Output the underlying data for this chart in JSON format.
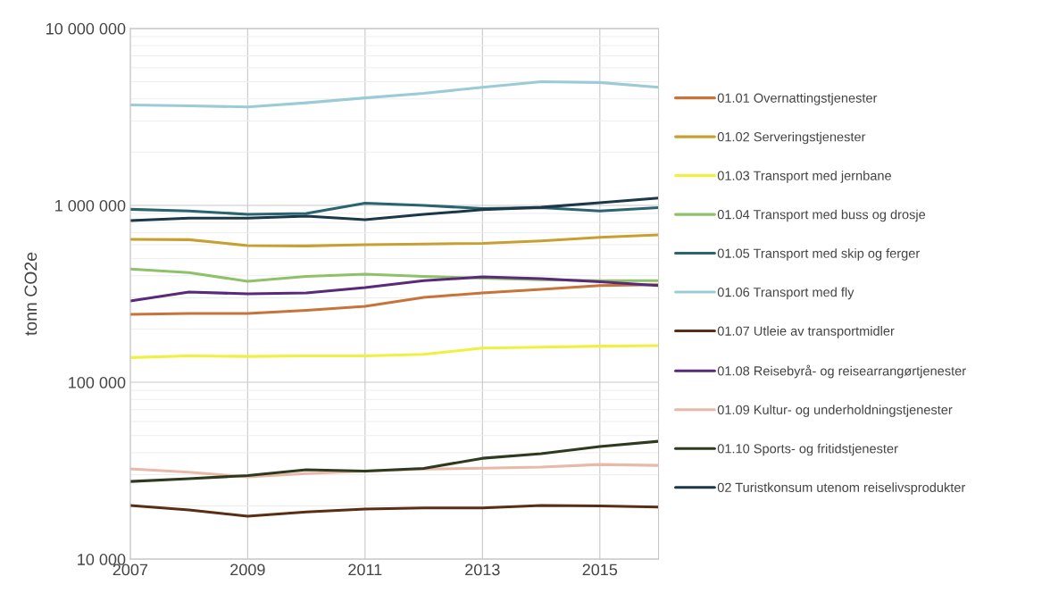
{
  "chart_data": {
    "type": "line",
    "ylabel": "tonn CO2e",
    "log": "y",
    "grid": true,
    "legend": "right",
    "line_style": "solid",
    "marker": "none",
    "x": [
      2007,
      2008,
      2009,
      2010,
      2011,
      2012,
      2013,
      2014,
      2015,
      2016
    ],
    "xlim": [
      2007,
      2016
    ],
    "xticks": [
      2007,
      2009,
      2011,
      2013,
      2015
    ],
    "ylim": [
      10000,
      10000000
    ],
    "yticks": [
      {
        "value": 10000,
        "label": "10 000"
      },
      {
        "value": 100000,
        "label": "100 000"
      },
      {
        "value": 1000000,
        "label": "1 000 000"
      },
      {
        "value": 10000000,
        "label": "10 000 000"
      }
    ],
    "series": [
      {
        "name": "01.01 Overnattingstjenester",
        "color": "#c8733a",
        "values": [
          242000,
          245000,
          245000,
          255000,
          269000,
          302000,
          320000,
          335000,
          352000,
          356000
        ]
      },
      {
        "name": "01.02 Serveringstjenester",
        "color": "#c8a032",
        "values": [
          643000,
          640000,
          593000,
          590000,
          600000,
          605000,
          610000,
          630000,
          660000,
          681000
        ]
      },
      {
        "name": "01.03 Transport med jernbane",
        "color": "#f0f040",
        "values": [
          138000,
          141000,
          140000,
          141000,
          141000,
          144000,
          156000,
          158000,
          160000,
          161000
        ]
      },
      {
        "name": "01.04 Transport med buss og drosje",
        "color": "#8fc06a",
        "values": [
          437000,
          417000,
          372000,
          397000,
          408000,
          397000,
          388000,
          380000,
          375000,
          375000
        ]
      },
      {
        "name": "01.05 Transport med skip og ferger",
        "color": "#2a6470",
        "values": [
          950000,
          930000,
          890000,
          900000,
          1030000,
          1000000,
          960000,
          970000,
          930000,
          970000
        ]
      },
      {
        "name": "01.06 Transport med fly",
        "color": "#9ccbd8",
        "values": [
          3700000,
          3650000,
          3600000,
          3800000,
          4050000,
          4300000,
          4650000,
          5000000,
          4950000,
          4650000
        ]
      },
      {
        "name": "01.07 Utleie av transportmidler",
        "color": "#5a2e14",
        "values": [
          20100,
          19000,
          17500,
          18500,
          19200,
          19500,
          19500,
          20100,
          20000,
          19700
        ]
      },
      {
        "name": "01.08 Reisebyrå- og reisearrangørtjenester",
        "color": "#5a2a7a",
        "values": [
          288000,
          324000,
          316000,
          320000,
          343000,
          375000,
          394000,
          385000,
          370000,
          352000
        ]
      },
      {
        "name": "01.09 Kultur- og underholdningstjenester",
        "color": "#e8b8a8",
        "values": [
          32400,
          31000,
          29200,
          30500,
          31500,
          32300,
          32700,
          33200,
          34300,
          33900
        ]
      },
      {
        "name": "01.10 Sports- og fritidstjenester",
        "color": "#2e3a1e",
        "values": [
          27500,
          28500,
          29700,
          32000,
          31500,
          32600,
          37200,
          39500,
          43300,
          46400
        ]
      },
      {
        "name": "02 Turistkonsum utenom reiselivsprodukter",
        "color": "#1a3848",
        "values": [
          820000,
          847000,
          847000,
          870000,
          830000,
          889000,
          945000,
          975000,
          1035000,
          1100000
        ]
      }
    ]
  }
}
